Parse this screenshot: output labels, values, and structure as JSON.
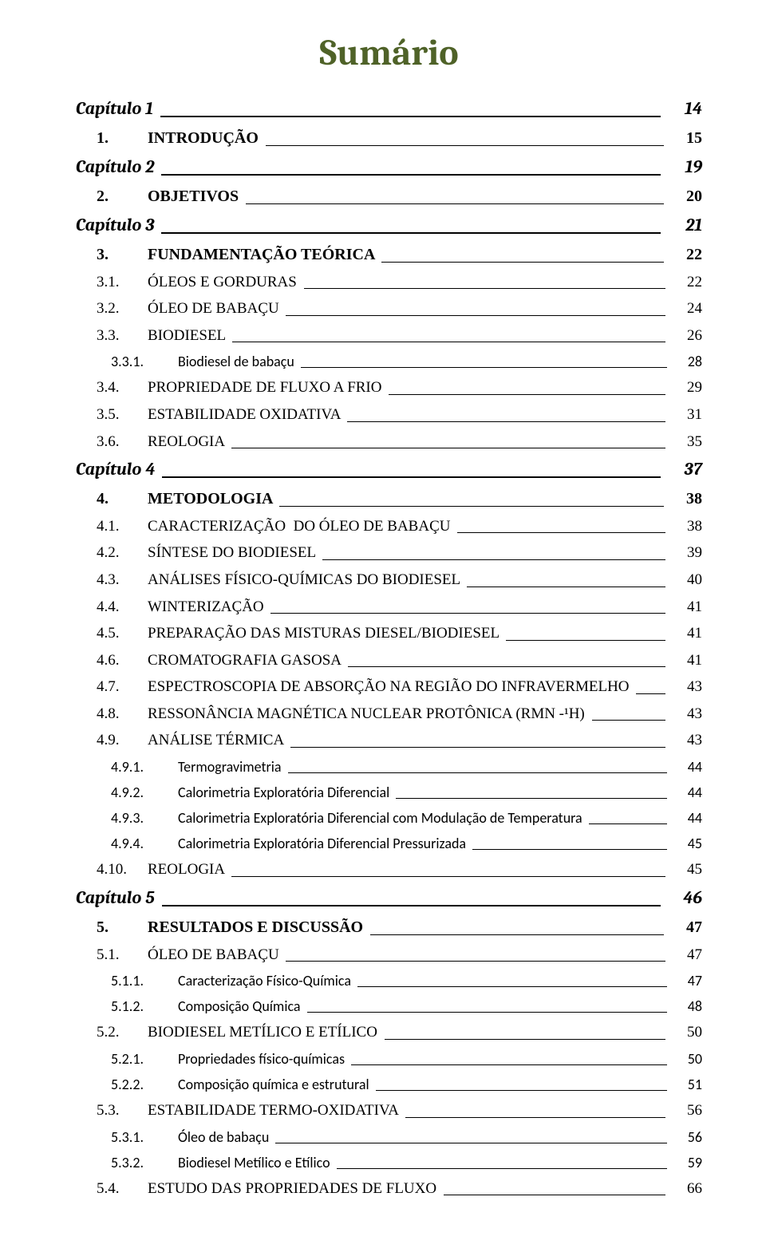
{
  "title": "Sumário",
  "colors": {
    "title_color": "#4F6228",
    "text_color": "#000000",
    "leader_color": "#000000",
    "background": "#ffffff"
  },
  "typography": {
    "title_fontsize": 46,
    "chapter_fontsize": 22,
    "heading_fontsize": 20,
    "sub_fontsize": 19,
    "subsub_fontsize": 18,
    "title_font": "Cambria",
    "body_font_serif": "Times New Roman",
    "body_font_sans": "Calibri"
  },
  "entries": [
    {
      "level": "chapter",
      "num": "",
      "text": "Capítulo 1",
      "page": "14"
    },
    {
      "level": "heading",
      "num": "1.",
      "text": "INTRODUÇÃO",
      "page": "15"
    },
    {
      "level": "chapter",
      "num": "",
      "text": "Capítulo 2",
      "page": "19"
    },
    {
      "level": "heading",
      "num": "2.",
      "text": "OBJETIVOS",
      "page": "20"
    },
    {
      "level": "chapter",
      "num": "",
      "text": "Capítulo 3",
      "page": "21"
    },
    {
      "level": "heading",
      "num": "3.",
      "text": "FUNDAMENTAÇÃO TEÓRICA",
      "page": "22"
    },
    {
      "level": "sub",
      "num": "3.1.",
      "text": "ÓLEOS E GORDURAS",
      "page": "22"
    },
    {
      "level": "sub",
      "num": "3.2.",
      "text": "ÓLEO DE BABAÇU",
      "page": "24"
    },
    {
      "level": "sub",
      "num": "3.3.",
      "text": "BIODIESEL",
      "page": "26"
    },
    {
      "level": "subsub",
      "num": "3.3.1.",
      "text": "Biodiesel de babaçu",
      "page": "28"
    },
    {
      "level": "sub",
      "num": "3.4.",
      "text": "PROPRIEDADE DE FLUXO A FRIO",
      "page": "29"
    },
    {
      "level": "sub",
      "num": "3.5.",
      "text": "ESTABILIDADE OXIDATIVA",
      "page": "31"
    },
    {
      "level": "sub",
      "num": "3.6.",
      "text": "REOLOGIA",
      "page": "35"
    },
    {
      "level": "chapter",
      "num": "",
      "text": "Capítulo 4",
      "page": "37"
    },
    {
      "level": "heading",
      "num": "4.",
      "text": "METODOLOGIA",
      "page": "38"
    },
    {
      "level": "sub",
      "num": "4.1.",
      "text": "CARACTERIZAÇÃO  DO ÓLEO DE BABAÇU",
      "page": "38"
    },
    {
      "level": "sub",
      "num": "4.2.",
      "text": "SÍNTESE DO BIODIESEL",
      "page": "39"
    },
    {
      "level": "sub",
      "num": "4.3.",
      "text": "ANÁLISES FÍSICO-QUÍMICAS DO BIODIESEL",
      "page": "40"
    },
    {
      "level": "sub",
      "num": "4.4.",
      "text": "WINTERIZAÇÃO",
      "page": "41"
    },
    {
      "level": "sub",
      "num": "4.5.",
      "text": "PREPARAÇÃO DAS MISTURAS DIESEL/BIODIESEL",
      "page": "41"
    },
    {
      "level": "sub",
      "num": "4.6.",
      "text": "CROMATOGRAFIA GASOSA",
      "page": "41"
    },
    {
      "level": "sub",
      "num": "4.7.",
      "text": "ESPECTROSCOPIA DE ABSORÇÃO NA REGIÃO DO INFRAVERMELHO",
      "page": "43"
    },
    {
      "level": "sub",
      "num": "4.8.",
      "text": "RESSONÂNCIA MAGNÉTICA NUCLEAR PROTÔNICA (RMN -¹H)",
      "page": "43"
    },
    {
      "level": "sub",
      "num": "4.9.",
      "text": "ANÁLISE TÉRMICA",
      "page": "43"
    },
    {
      "level": "subsub",
      "num": "4.9.1.",
      "text": "Termogravimetria",
      "page": "44"
    },
    {
      "level": "subsub",
      "num": "4.9.2.",
      "text": "Calorimetria Exploratória Diferencial",
      "page": "44"
    },
    {
      "level": "subsub",
      "num": "4.9.3.",
      "text": "Calorimetria Exploratória Diferencial com Modulação de Temperatura",
      "page": "44"
    },
    {
      "level": "subsub",
      "num": "4.9.4.",
      "text": "Calorimetria Exploratória Diferencial Pressurizada",
      "page": "45"
    },
    {
      "level": "sub",
      "num": "4.10.",
      "text": "REOLOGIA",
      "page": "45"
    },
    {
      "level": "chapter",
      "num": "",
      "text": "Capítulo 5",
      "page": "46"
    },
    {
      "level": "heading",
      "num": "5.",
      "text": "RESULTADOS E DISCUSSÃO",
      "page": "47"
    },
    {
      "level": "sub",
      "num": "5.1.",
      "text": "ÓLEO DE BABAÇU",
      "page": "47"
    },
    {
      "level": "subsub",
      "num": "5.1.1.",
      "text": "Caracterização Físico-Química",
      "page": "47"
    },
    {
      "level": "subsub",
      "num": "5.1.2.",
      "text": "Composição Química",
      "page": "48"
    },
    {
      "level": "sub",
      "num": "5.2.",
      "text": "BIODIESEL METÍLICO E ETÍLICO",
      "page": "50"
    },
    {
      "level": "subsub",
      "num": "5.2.1.",
      "text": "Propriedades físico-químicas",
      "page": "50"
    },
    {
      "level": "subsub",
      "num": "5.2.2.",
      "text": "Composição química e estrutural",
      "page": "51"
    },
    {
      "level": "sub",
      "num": "5.3.",
      "text": "ESTABILIDADE TERMO-OXIDATIVA",
      "page": "56"
    },
    {
      "level": "subsub",
      "num": "5.3.1.",
      "text": "Óleo de babaçu",
      "page": "56"
    },
    {
      "level": "subsub",
      "num": "5.3.2.",
      "text": "Biodiesel Metílico e Etílico",
      "page": "59"
    },
    {
      "level": "sub",
      "num": "5.4.",
      "text": "ESTUDO DAS PROPRIEDADES DE FLUXO",
      "page": "66"
    }
  ]
}
